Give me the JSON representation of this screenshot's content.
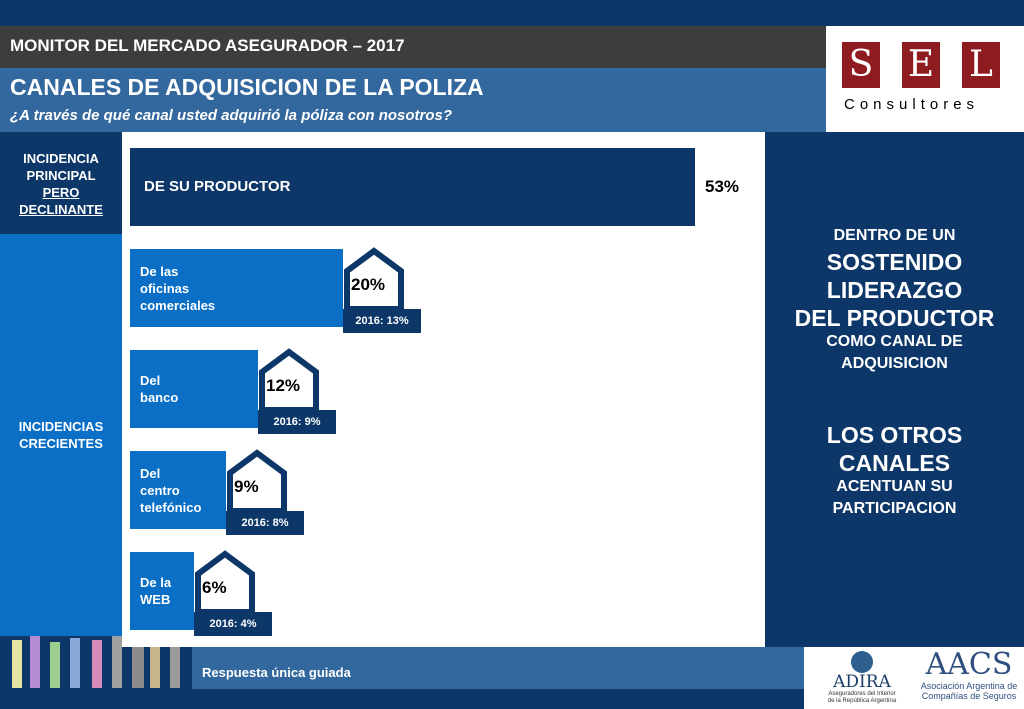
{
  "header": {
    "monitor_title": "MONITOR DEL MERCADO ASEGURADOR – 2017",
    "section_title": "CANALES DE ADQUISICION DE LA POLIZA",
    "question": "¿A través de qué canal usted adquirió la póliza con nosotros?"
  },
  "logo": {
    "letters": [
      "S",
      "E",
      "L"
    ],
    "subtitle": "Consultores",
    "color": "#8e1b1f"
  },
  "left_labels": {
    "principal": [
      "INCIDENCIA",
      "PRINCIPAL",
      "PERO",
      "DECLINANTE"
    ],
    "crecientes": [
      "INCIDENCIAS",
      "CRECIENTES"
    ]
  },
  "right_panel": {
    "block1": [
      "DENTRO DE UN",
      "SOSTENIDO",
      "LIDERAZGO",
      "DEL PRODUCTOR",
      "COMO CANAL DE",
      "ADQUISICION"
    ],
    "block2": [
      "LOS OTROS",
      "CANALES",
      "ACENTUAN SU",
      "PARTICIPACION"
    ]
  },
  "footer": {
    "note": "Respuesta única guiada"
  },
  "partners": {
    "adira_name": "ADIRA",
    "adira_sub": [
      "Aseguradores del Interior",
      "de la República Argentina"
    ],
    "aacs_name": "AACS",
    "aacs_sub": [
      "Asociación Argentina de",
      "Compañías de Seguros"
    ]
  },
  "colors": {
    "navy": "#0d3768",
    "blue": "#0b6fc6",
    "steel": "#33689f",
    "dark_gray": "#3d3d3d"
  },
  "chart_data": {
    "type": "bar",
    "orientation": "horizontal",
    "categories": [
      "DE SU PRODUCTOR",
      "De las\noficinas\ncomerciales",
      "Del\nbanco",
      "Del\ncentro\ntelefónico",
      "De la\nWEB"
    ],
    "values": [
      53,
      20,
      12,
      9,
      6
    ],
    "value_labels": [
      "53%",
      "20%",
      "12%",
      "9%",
      "6%"
    ],
    "previous_labels": [
      "",
      "2016: 13%",
      "2016: 9%",
      "2016: 8%",
      "2016: 4%"
    ],
    "previous_values": [
      null,
      13,
      9,
      8,
      4
    ],
    "xlim": [
      0,
      100
    ],
    "bar_colors": [
      "#0d3768",
      "#0b6fc6",
      "#0b6fc6",
      "#0b6fc6",
      "#0b6fc6"
    ],
    "title": "",
    "xlabel": "",
    "ylabel": "",
    "legend": "none",
    "grid": false
  }
}
